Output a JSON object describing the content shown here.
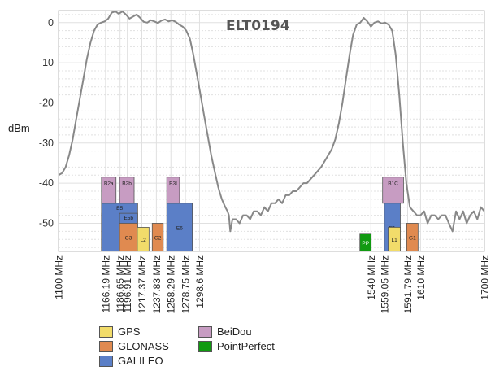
{
  "chart_data": {
    "type": "line",
    "title": "ELT0194",
    "ylabel": "dBm",
    "xlabel": "",
    "xlim": [
      1100,
      1700
    ],
    "ylim": [
      -57,
      3
    ],
    "yticks": [
      0,
      -10,
      -20,
      -30,
      -40,
      -50
    ],
    "ytick_labels": [
      "0",
      "-10",
      "-20",
      "-30",
      "-40",
      "-50"
    ],
    "xticks": [
      1100,
      1166.19,
      1186.65,
      1196.91,
      1217.37,
      1237.83,
      1258.29,
      1278.75,
      1298.6,
      1540,
      1559.05,
      1591.79,
      1610,
      1700
    ],
    "xtick_labels": [
      "1100 MHz",
      "1166.19 MHz",
      "1186.65 MHz",
      "1196.91 MHz",
      "1217.37 MHz",
      "1237.83 MHz",
      "1258.29 MHz",
      "1278.75 MHz",
      "1298.6 MHz",
      "1540 MHz",
      "1559.05 MHz",
      "1591.79 MHz",
      "1610 MHz",
      "1700 MHz"
    ],
    "grid": true,
    "series": [
      {
        "name": "",
        "color": "#888888",
        "points": [
          [
            1100,
            -38
          ],
          [
            1105,
            -37.5
          ],
          [
            1110,
            -36
          ],
          [
            1115,
            -33
          ],
          [
            1120,
            -29
          ],
          [
            1125,
            -24
          ],
          [
            1130,
            -19
          ],
          [
            1135,
            -14
          ],
          [
            1140,
            -9
          ],
          [
            1145,
            -5
          ],
          [
            1150,
            -2
          ],
          [
            1155,
            -0.5
          ],
          [
            1160,
            0
          ],
          [
            1165,
            0.3
          ],
          [
            1170,
            1
          ],
          [
            1175,
            2.5
          ],
          [
            1180,
            2.8
          ],
          [
            1185,
            2.2
          ],
          [
            1190,
            2.8
          ],
          [
            1195,
            2
          ],
          [
            1200,
            1
          ],
          [
            1205,
            1.5
          ],
          [
            1210,
            2
          ],
          [
            1215,
            1.2
          ],
          [
            1220,
            0.2
          ],
          [
            1225,
            0
          ],
          [
            1230,
            0.6
          ],
          [
            1235,
            0.3
          ],
          [
            1240,
            -0.1
          ],
          [
            1245,
            0.5
          ],
          [
            1250,
            0.8
          ],
          [
            1255,
            0.3
          ],
          [
            1260,
            0.6
          ],
          [
            1265,
            0.2
          ],
          [
            1270,
            -0.5
          ],
          [
            1275,
            -1
          ],
          [
            1280,
            -2
          ],
          [
            1285,
            -4
          ],
          [
            1290,
            -8
          ],
          [
            1295,
            -13
          ],
          [
            1300,
            -18
          ],
          [
            1305,
            -23
          ],
          [
            1310,
            -28
          ],
          [
            1315,
            -33
          ],
          [
            1320,
            -37
          ],
          [
            1325,
            -41
          ],
          [
            1330,
            -44
          ],
          [
            1335,
            -46
          ],
          [
            1338,
            -47
          ],
          [
            1340,
            -48
          ],
          [
            1342,
            -52
          ],
          [
            1345,
            -49
          ],
          [
            1350,
            -49
          ],
          [
            1355,
            -50
          ],
          [
            1360,
            -48
          ],
          [
            1365,
            -48
          ],
          [
            1370,
            -49
          ],
          [
            1375,
            -47
          ],
          [
            1380,
            -47
          ],
          [
            1385,
            -48
          ],
          [
            1390,
            -46
          ],
          [
            1395,
            -47
          ],
          [
            1400,
            -45
          ],
          [
            1405,
            -45
          ],
          [
            1410,
            -44
          ],
          [
            1415,
            -45
          ],
          [
            1420,
            -43
          ],
          [
            1425,
            -43
          ],
          [
            1430,
            -42
          ],
          [
            1435,
            -42
          ],
          [
            1440,
            -41
          ],
          [
            1445,
            -40
          ],
          [
            1450,
            -40
          ],
          [
            1455,
            -39
          ],
          [
            1460,
            -38
          ],
          [
            1465,
            -37
          ],
          [
            1470,
            -36
          ],
          [
            1475,
            -34.5
          ],
          [
            1480,
            -33
          ],
          [
            1485,
            -31.5
          ],
          [
            1490,
            -29
          ],
          [
            1495,
            -25
          ],
          [
            1500,
            -20
          ],
          [
            1505,
            -14
          ],
          [
            1510,
            -8
          ],
          [
            1515,
            -3
          ],
          [
            1520,
            -0.5
          ],
          [
            1525,
            0
          ],
          [
            1530,
            1.2
          ],
          [
            1535,
            0.3
          ],
          [
            1540,
            -1
          ],
          [
            1545,
            0
          ],
          [
            1550,
            0.3
          ],
          [
            1555,
            -0.2
          ],
          [
            1560,
            0
          ],
          [
            1565,
            -0.5
          ],
          [
            1570,
            -2
          ],
          [
            1575,
            -8
          ],
          [
            1580,
            -18
          ],
          [
            1585,
            -30
          ],
          [
            1590,
            -40
          ],
          [
            1595,
            -46
          ],
          [
            1600,
            -47
          ],
          [
            1605,
            -48
          ],
          [
            1610,
            -48
          ],
          [
            1615,
            -47
          ],
          [
            1620,
            -50
          ],
          [
            1625,
            -48
          ],
          [
            1630,
            -48
          ],
          [
            1635,
            -49
          ],
          [
            1640,
            -48
          ],
          [
            1645,
            -48
          ],
          [
            1650,
            -50
          ],
          [
            1655,
            -52
          ],
          [
            1660,
            -47
          ],
          [
            1665,
            -49
          ],
          [
            1670,
            -47
          ],
          [
            1675,
            -50
          ],
          [
            1680,
            -48
          ],
          [
            1685,
            -47
          ],
          [
            1690,
            -49
          ],
          [
            1695,
            -46
          ],
          [
            1700,
            -47
          ]
        ]
      }
    ],
    "bands": [
      {
        "label": "L5",
        "system": "GPS",
        "x0": 1171.5,
        "x1": 1181.0,
        "y0": -57,
        "y1": -51
      },
      {
        "label": "E5a",
        "system": "GALILEO",
        "x0": 1160.5,
        "x1": 1181.0,
        "y0": -57,
        "y1": -47.5
      },
      {
        "label": "E5",
        "system": "GALILEO",
        "x0": 1160.5,
        "x1": 1211.5,
        "y0": -57,
        "y1": -45
      },
      {
        "label": "E5b",
        "system": "GALILEO",
        "x0": 1186.0,
        "x1": 1211.5,
        "y0": -57,
        "y1": -47.5
      },
      {
        "label": "G3",
        "system": "GLONASS",
        "x0": 1186.0,
        "x1": 1211.0,
        "y0": -57,
        "y1": -50
      },
      {
        "label": "B2a",
        "system": "BeiDou",
        "x0": 1160.5,
        "x1": 1181.0,
        "y0": -45,
        "y1": -38.5
      },
      {
        "label": "B2b",
        "system": "BeiDou",
        "x0": 1186.0,
        "x1": 1206.5,
        "y0": -45,
        "y1": -38.5
      },
      {
        "label": "L2",
        "system": "GPS",
        "x0": 1211.0,
        "x1": 1227.5,
        "y0": -57,
        "y1": -51
      },
      {
        "label": "G2",
        "system": "GLONASS",
        "x0": 1232.0,
        "x1": 1247.5,
        "y0": -57,
        "y1": -50
      },
      {
        "label": "E6",
        "system": "GALILEO",
        "x0": 1252.5,
        "x1": 1288.5,
        "y0": -57,
        "y1": -45
      },
      {
        "label": "B3I",
        "system": "BeiDou",
        "x0": 1252.5,
        "x1": 1270.5,
        "y0": -45,
        "y1": -38.5
      },
      {
        "label": "PP",
        "system": "PointPerfect",
        "x0": 1524.5,
        "x1": 1540.5,
        "y0": -57,
        "y1": -52.5
      },
      {
        "label": "B1C",
        "system": "BeiDou",
        "x0": 1556.5,
        "x1": 1586.0,
        "y0": -45,
        "y1": -38.5
      },
      {
        "label": "E1",
        "system": "GALILEO",
        "x0": 1559.0,
        "x1": 1581.5,
        "y0": -57,
        "y1": -45
      },
      {
        "label": "L1",
        "system": "GPS",
        "x0": 1564.5,
        "x1": 1581.5,
        "y0": -57,
        "y1": -51
      },
      {
        "label": "G1",
        "system": "GLONASS",
        "x0": 1590.5,
        "x1": 1606.5,
        "y0": -57,
        "y1": -50
      }
    ],
    "legend_position": "bottom",
    "legend": [
      {
        "label": "GPS",
        "color": "#f2dc6a"
      },
      {
        "label": "GLONASS",
        "color": "#e08a50"
      },
      {
        "label": "GALILEO",
        "color": "#5b7fc7"
      },
      {
        "label": "BeiDou",
        "color": "#c79cc2"
      },
      {
        "label": "PointPerfect",
        "color": "#119a11"
      }
    ]
  }
}
